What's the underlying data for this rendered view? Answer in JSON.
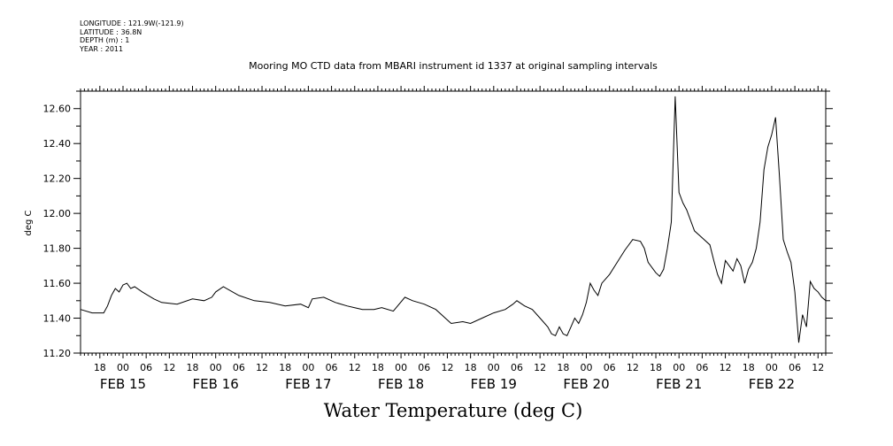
{
  "header": {
    "longitude": "LONGITUDE : 121.9W(-121.9)",
    "latitude": "LATITUDE : 36.8N",
    "depth": "DEPTH (m) : 1",
    "year": "YEAR : 2011"
  },
  "chart_data": {
    "type": "line",
    "title": "Mooring MO CTD data from MBARI instrument id 1337 at original sampling intervals",
    "caption": "Water Temperature (deg C)",
    "ylabel": "deg C",
    "xlabel": "",
    "xlim": [
      "2011-02-14 13:00",
      "2011-02-22 14:00"
    ],
    "ylim": [
      11.2,
      12.7
    ],
    "y_ticks": [
      "11.20",
      "11.40",
      "11.60",
      "11.80",
      "12.00",
      "12.20",
      "12.40",
      "12.60"
    ],
    "x_hour_ticks": [
      {
        "t": "2011-02-14 18:00",
        "label": "18"
      },
      {
        "t": "2011-02-15 00:00",
        "label": "00"
      },
      {
        "t": "2011-02-15 06:00",
        "label": "06"
      },
      {
        "t": "2011-02-15 12:00",
        "label": "12"
      },
      {
        "t": "2011-02-15 18:00",
        "label": "18"
      },
      {
        "t": "2011-02-16 00:00",
        "label": "00"
      },
      {
        "t": "2011-02-16 06:00",
        "label": "06"
      },
      {
        "t": "2011-02-16 12:00",
        "label": "12"
      },
      {
        "t": "2011-02-16 18:00",
        "label": "18"
      },
      {
        "t": "2011-02-17 00:00",
        "label": "00"
      },
      {
        "t": "2011-02-17 06:00",
        "label": "06"
      },
      {
        "t": "2011-02-17 12:00",
        "label": "12"
      },
      {
        "t": "2011-02-17 18:00",
        "label": "18"
      },
      {
        "t": "2011-02-18 00:00",
        "label": "00"
      },
      {
        "t": "2011-02-18 06:00",
        "label": "06"
      },
      {
        "t": "2011-02-18 12:00",
        "label": "12"
      },
      {
        "t": "2011-02-18 18:00",
        "label": "18"
      },
      {
        "t": "2011-02-19 00:00",
        "label": "00"
      },
      {
        "t": "2011-02-19 06:00",
        "label": "06"
      },
      {
        "t": "2011-02-19 12:00",
        "label": "12"
      },
      {
        "t": "2011-02-19 18:00",
        "label": "18"
      },
      {
        "t": "2011-02-20 00:00",
        "label": "00"
      },
      {
        "t": "2011-02-20 06:00",
        "label": "06"
      },
      {
        "t": "2011-02-20 12:00",
        "label": "12"
      },
      {
        "t": "2011-02-20 18:00",
        "label": "18"
      },
      {
        "t": "2011-02-21 00:00",
        "label": "00"
      },
      {
        "t": "2011-02-21 06:00",
        "label": "06"
      },
      {
        "t": "2011-02-21 12:00",
        "label": "12"
      },
      {
        "t": "2011-02-21 18:00",
        "label": "18"
      },
      {
        "t": "2011-02-22 00:00",
        "label": "00"
      },
      {
        "t": "2011-02-22 06:00",
        "label": "06"
      },
      {
        "t": "2011-02-22 12:00",
        "label": "12"
      }
    ],
    "x_day_labels": [
      {
        "t": "2011-02-15 00:00",
        "label": "FEB 15"
      },
      {
        "t": "2011-02-16 00:00",
        "label": "FEB 16"
      },
      {
        "t": "2011-02-17 00:00",
        "label": "FEB 17"
      },
      {
        "t": "2011-02-18 00:00",
        "label": "FEB 18"
      },
      {
        "t": "2011-02-19 00:00",
        "label": "FEB 19"
      },
      {
        "t": "2011-02-20 00:00",
        "label": "FEB 20"
      },
      {
        "t": "2011-02-21 00:00",
        "label": "FEB 21"
      },
      {
        "t": "2011-02-22 00:00",
        "label": "FEB 22"
      }
    ],
    "grid": false,
    "series": [
      {
        "color": "#000000",
        "x": [
          "2011-02-14 13:00",
          "2011-02-14 16:00",
          "2011-02-14 19:00",
          "2011-02-14 20:00",
          "2011-02-14 21:00",
          "2011-02-14 22:00",
          "2011-02-14 23:00",
          "2011-02-15 00:00",
          "2011-02-15 01:00",
          "2011-02-15 02:00",
          "2011-02-15 03:00",
          "2011-02-15 05:00",
          "2011-02-15 08:00",
          "2011-02-15 10:00",
          "2011-02-15 14:00",
          "2011-02-15 18:00",
          "2011-02-15 21:00",
          "2011-02-15 23:00",
          "2011-02-16 00:00",
          "2011-02-16 02:00",
          "2011-02-16 06:00",
          "2011-02-16 10:00",
          "2011-02-16 14:00",
          "2011-02-16 18:00",
          "2011-02-16 22:00",
          "2011-02-17 00:00",
          "2011-02-17 01:00",
          "2011-02-17 04:00",
          "2011-02-17 07:00",
          "2011-02-17 10:00",
          "2011-02-17 12:00",
          "2011-02-17 14:00",
          "2011-02-17 17:00",
          "2011-02-17 19:00",
          "2011-02-17 22:00",
          "2011-02-18 01:00",
          "2011-02-18 03:00",
          "2011-02-18 06:00",
          "2011-02-18 09:00",
          "2011-02-18 11:00",
          "2011-02-18 13:00",
          "2011-02-18 16:00",
          "2011-02-18 18:00",
          "2011-02-18 21:00",
          "2011-02-19 00:00",
          "2011-02-19 03:00",
          "2011-02-19 05:00",
          "2011-02-19 06:00",
          "2011-02-19 08:00",
          "2011-02-19 10:00",
          "2011-02-19 12:00",
          "2011-02-19 14:00",
          "2011-02-19 15:00",
          "2011-02-19 16:00",
          "2011-02-19 17:00",
          "2011-02-19 18:00",
          "2011-02-19 19:00",
          "2011-02-19 20:00",
          "2011-02-19 21:00",
          "2011-02-19 22:00",
          "2011-02-19 23:00",
          "2011-02-20 00:00",
          "2011-02-20 01:00",
          "2011-02-20 02:00",
          "2011-02-20 03:00",
          "2011-02-20 04:00",
          "2011-02-20 06:00",
          "2011-02-20 08:00",
          "2011-02-20 10:00",
          "2011-02-20 12:00",
          "2011-02-20 14:00",
          "2011-02-20 15:00",
          "2011-02-20 16:00",
          "2011-02-20 18:00",
          "2011-02-20 19:00",
          "2011-02-20 20:00",
          "2011-02-20 21:00",
          "2011-02-20 22:00",
          "2011-02-20 23:00",
          "2011-02-21 00:00",
          "2011-02-21 01:00",
          "2011-02-21 02:00",
          "2011-02-21 04:00",
          "2011-02-21 06:00",
          "2011-02-21 08:00",
          "2011-02-21 09:00",
          "2011-02-21 10:00",
          "2011-02-21 11:00",
          "2011-02-21 12:00",
          "2011-02-21 13:00",
          "2011-02-21 14:00",
          "2011-02-21 15:00",
          "2011-02-21 16:00",
          "2011-02-21 17:00",
          "2011-02-21 18:00",
          "2011-02-21 19:00",
          "2011-02-21 20:00",
          "2011-02-21 21:00",
          "2011-02-21 22:00",
          "2011-02-21 23:00",
          "2011-02-22 00:00",
          "2011-02-22 01:00",
          "2011-02-22 02:00",
          "2011-02-22 03:00",
          "2011-02-22 04:00",
          "2011-02-22 05:00",
          "2011-02-22 06:00",
          "2011-02-22 07:00",
          "2011-02-22 08:00",
          "2011-02-22 09:00",
          "2011-02-22 10:00",
          "2011-02-22 11:00",
          "2011-02-22 12:00",
          "2011-02-22 13:00",
          "2011-02-22 14:00"
        ],
        "y": [
          11.45,
          11.43,
          11.43,
          11.47,
          11.53,
          11.57,
          11.55,
          11.59,
          11.6,
          11.57,
          11.58,
          11.55,
          11.51,
          11.49,
          11.48,
          11.51,
          11.5,
          11.52,
          11.55,
          11.58,
          11.53,
          11.5,
          11.49,
          11.47,
          11.48,
          11.46,
          11.51,
          11.52,
          11.49,
          11.47,
          11.46,
          11.45,
          11.45,
          11.46,
          11.44,
          11.52,
          11.5,
          11.48,
          11.45,
          11.41,
          11.37,
          11.38,
          11.37,
          11.4,
          11.43,
          11.45,
          11.48,
          11.5,
          11.47,
          11.45,
          11.4,
          11.35,
          11.31,
          11.3,
          11.35,
          11.31,
          11.3,
          11.35,
          11.4,
          11.37,
          11.42,
          11.49,
          11.6,
          11.56,
          11.53,
          11.6,
          11.65,
          11.72,
          11.79,
          11.85,
          11.84,
          11.8,
          11.72,
          11.66,
          11.64,
          11.68,
          11.8,
          11.95,
          12.67,
          12.12,
          12.06,
          12.02,
          11.9,
          11.86,
          11.82,
          11.73,
          11.65,
          11.6,
          11.73,
          11.7,
          11.67,
          11.74,
          11.7,
          11.6,
          11.68,
          11.72,
          11.8,
          11.95,
          12.25,
          12.38,
          12.45,
          12.55,
          12.22,
          11.85,
          11.78,
          11.72,
          11.55,
          11.26,
          11.42,
          11.35,
          11.61,
          11.57,
          11.55,
          11.52,
          11.5
        ]
      }
    ]
  }
}
